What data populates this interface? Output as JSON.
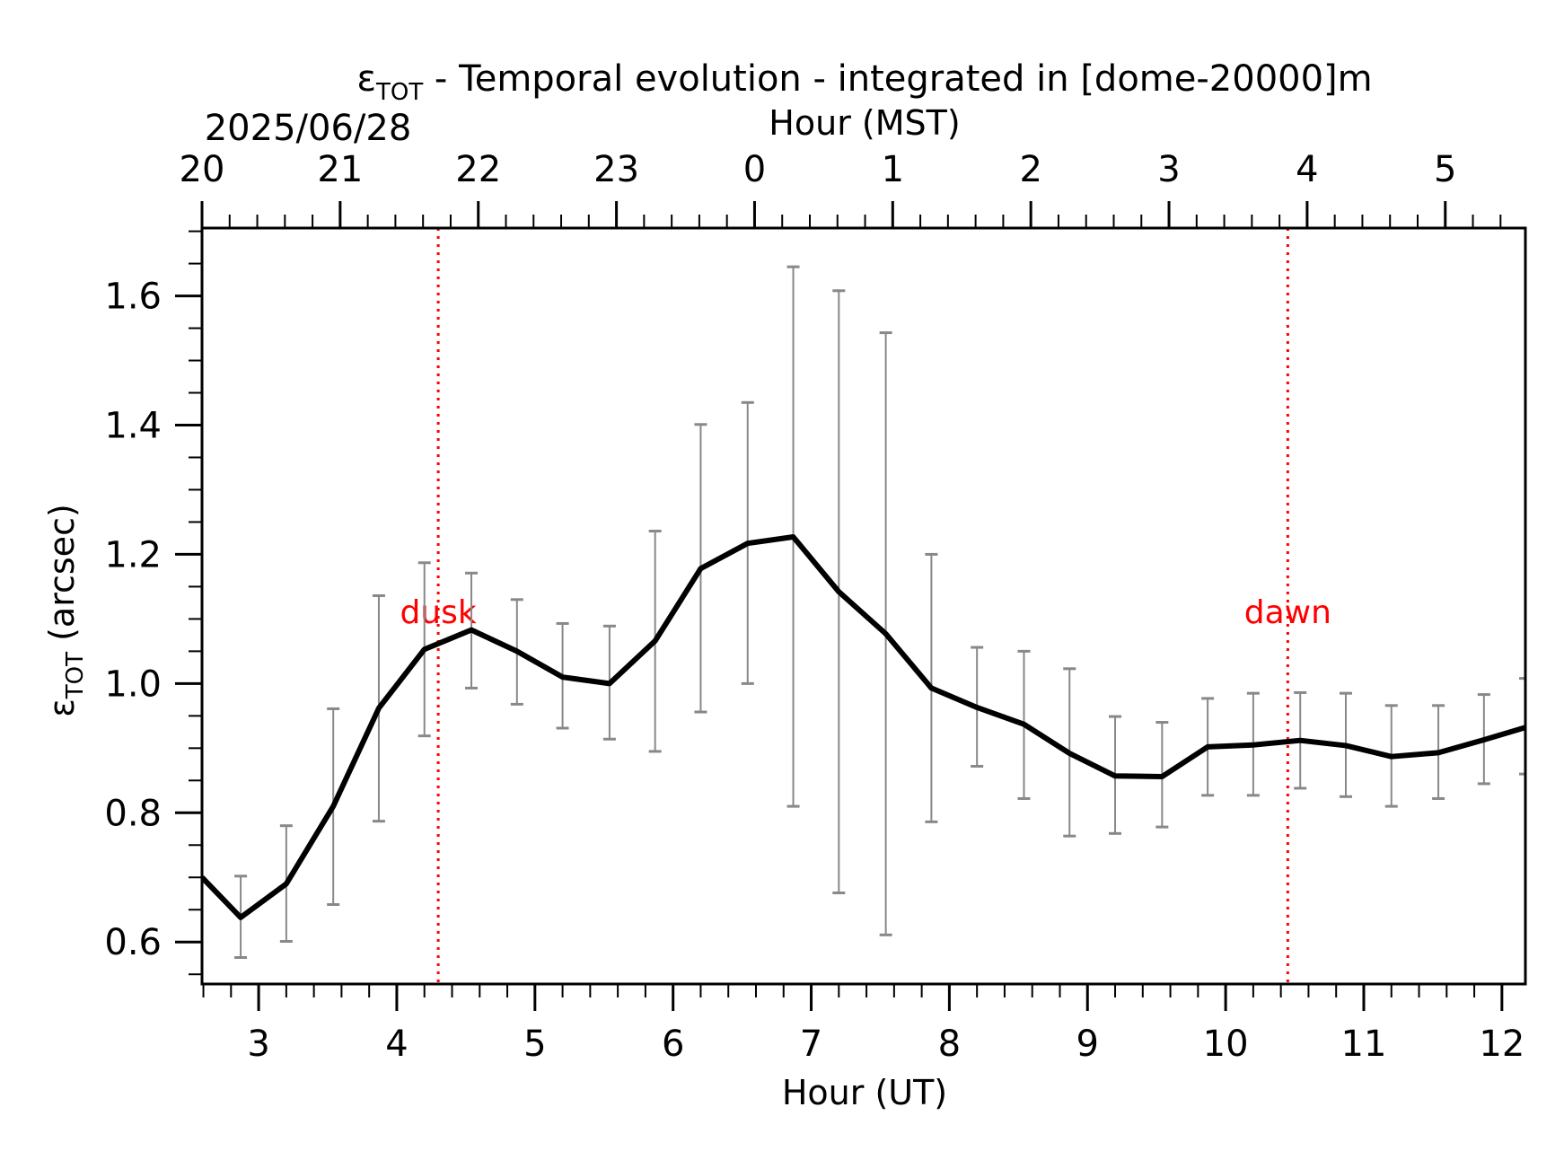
{
  "chart_data": {
    "type": "line",
    "title": {
      "main": "ε",
      "sub": "TOT",
      "rest": " - Temporal evolution - integrated in [dome-20000]m"
    },
    "date_label": "2025/06/28",
    "xlabel": "Hour (UT)",
    "xlabel_top": "Hour (MST)",
    "ylabel": {
      "main": "ε",
      "sub": "TOT",
      "rest": " (arcsec)"
    },
    "xlim": [
      2.59,
      12.17
    ],
    "ylim": [
      0.535,
      1.705
    ],
    "x_ticks": [
      3,
      4,
      5,
      6,
      7,
      8,
      9,
      10,
      11,
      12
    ],
    "x_tick_labels": [
      "3",
      "4",
      "5",
      "6",
      "7",
      "8",
      "9",
      "10",
      "11",
      "12"
    ],
    "top_ticks": [
      2.59,
      3.59,
      4.59,
      5.59,
      6.59,
      7.59,
      8.59,
      9.59,
      10.59,
      11.59
    ],
    "top_tick_labels": [
      "20",
      "21",
      "22",
      "23",
      "0",
      "1",
      "2",
      "3",
      "4",
      "5"
    ],
    "y_ticks": [
      0.6,
      0.8,
      1.0,
      1.2,
      1.4,
      1.6
    ],
    "y_tick_labels": [
      "0.6",
      "0.8",
      "1.0",
      "1.2",
      "1.4",
      "1.6"
    ],
    "series": [
      {
        "x": [
          2.59,
          2.87,
          3.2,
          3.54,
          3.87,
          4.2,
          4.54,
          4.87,
          5.2,
          5.54,
          5.87,
          6.2,
          6.54,
          6.87,
          7.2,
          7.54,
          7.87,
          8.2,
          8.54,
          8.87,
          9.2,
          9.54,
          9.87,
          10.2,
          10.54,
          10.87,
          11.2,
          11.54,
          11.87,
          12.17
        ],
        "y": [
          0.7,
          0.638,
          0.69,
          0.81,
          0.962,
          1.053,
          1.083,
          1.05,
          1.01,
          1.0,
          1.066,
          1.178,
          1.217,
          1.227,
          1.142,
          1.077,
          0.993,
          0.963,
          0.937,
          0.892,
          0.857,
          0.856,
          0.902,
          0.905,
          0.912,
          0.904,
          0.887,
          0.893,
          0.913,
          0.932
        ],
        "y_err_low": [
          null,
          0.576,
          0.601,
          0.658,
          0.787,
          0.919,
          0.993,
          0.968,
          0.931,
          0.914,
          0.895,
          0.956,
          1.0,
          0.81,
          0.676,
          0.611,
          0.786,
          0.872,
          0.822,
          0.764,
          0.768,
          0.778,
          0.827,
          0.827,
          0.838,
          0.825,
          0.81,
          0.822,
          0.845,
          0.86
        ],
        "y_err_high": [
          null,
          0.702,
          0.78,
          0.961,
          1.136,
          1.187,
          1.171,
          1.13,
          1.093,
          1.089,
          1.236,
          1.401,
          1.435,
          1.645,
          1.608,
          1.543,
          1.2,
          1.056,
          1.05,
          1.023,
          0.949,
          0.94,
          0.977,
          0.985,
          0.986,
          0.985,
          0.966,
          0.966,
          0.983,
          1.008
        ]
      }
    ],
    "annotations": [
      {
        "x": 4.3,
        "label": "dusk",
        "style": "dotted",
        "label_y": 1.11
      },
      {
        "x": 10.45,
        "label": "dawn",
        "style": "dotted",
        "label_y": 1.11
      }
    ],
    "colors": {
      "line": "#000000",
      "errorbar": "#888888",
      "annotation": "#ff0000",
      "axes": "#000000"
    },
    "grid": false
  }
}
